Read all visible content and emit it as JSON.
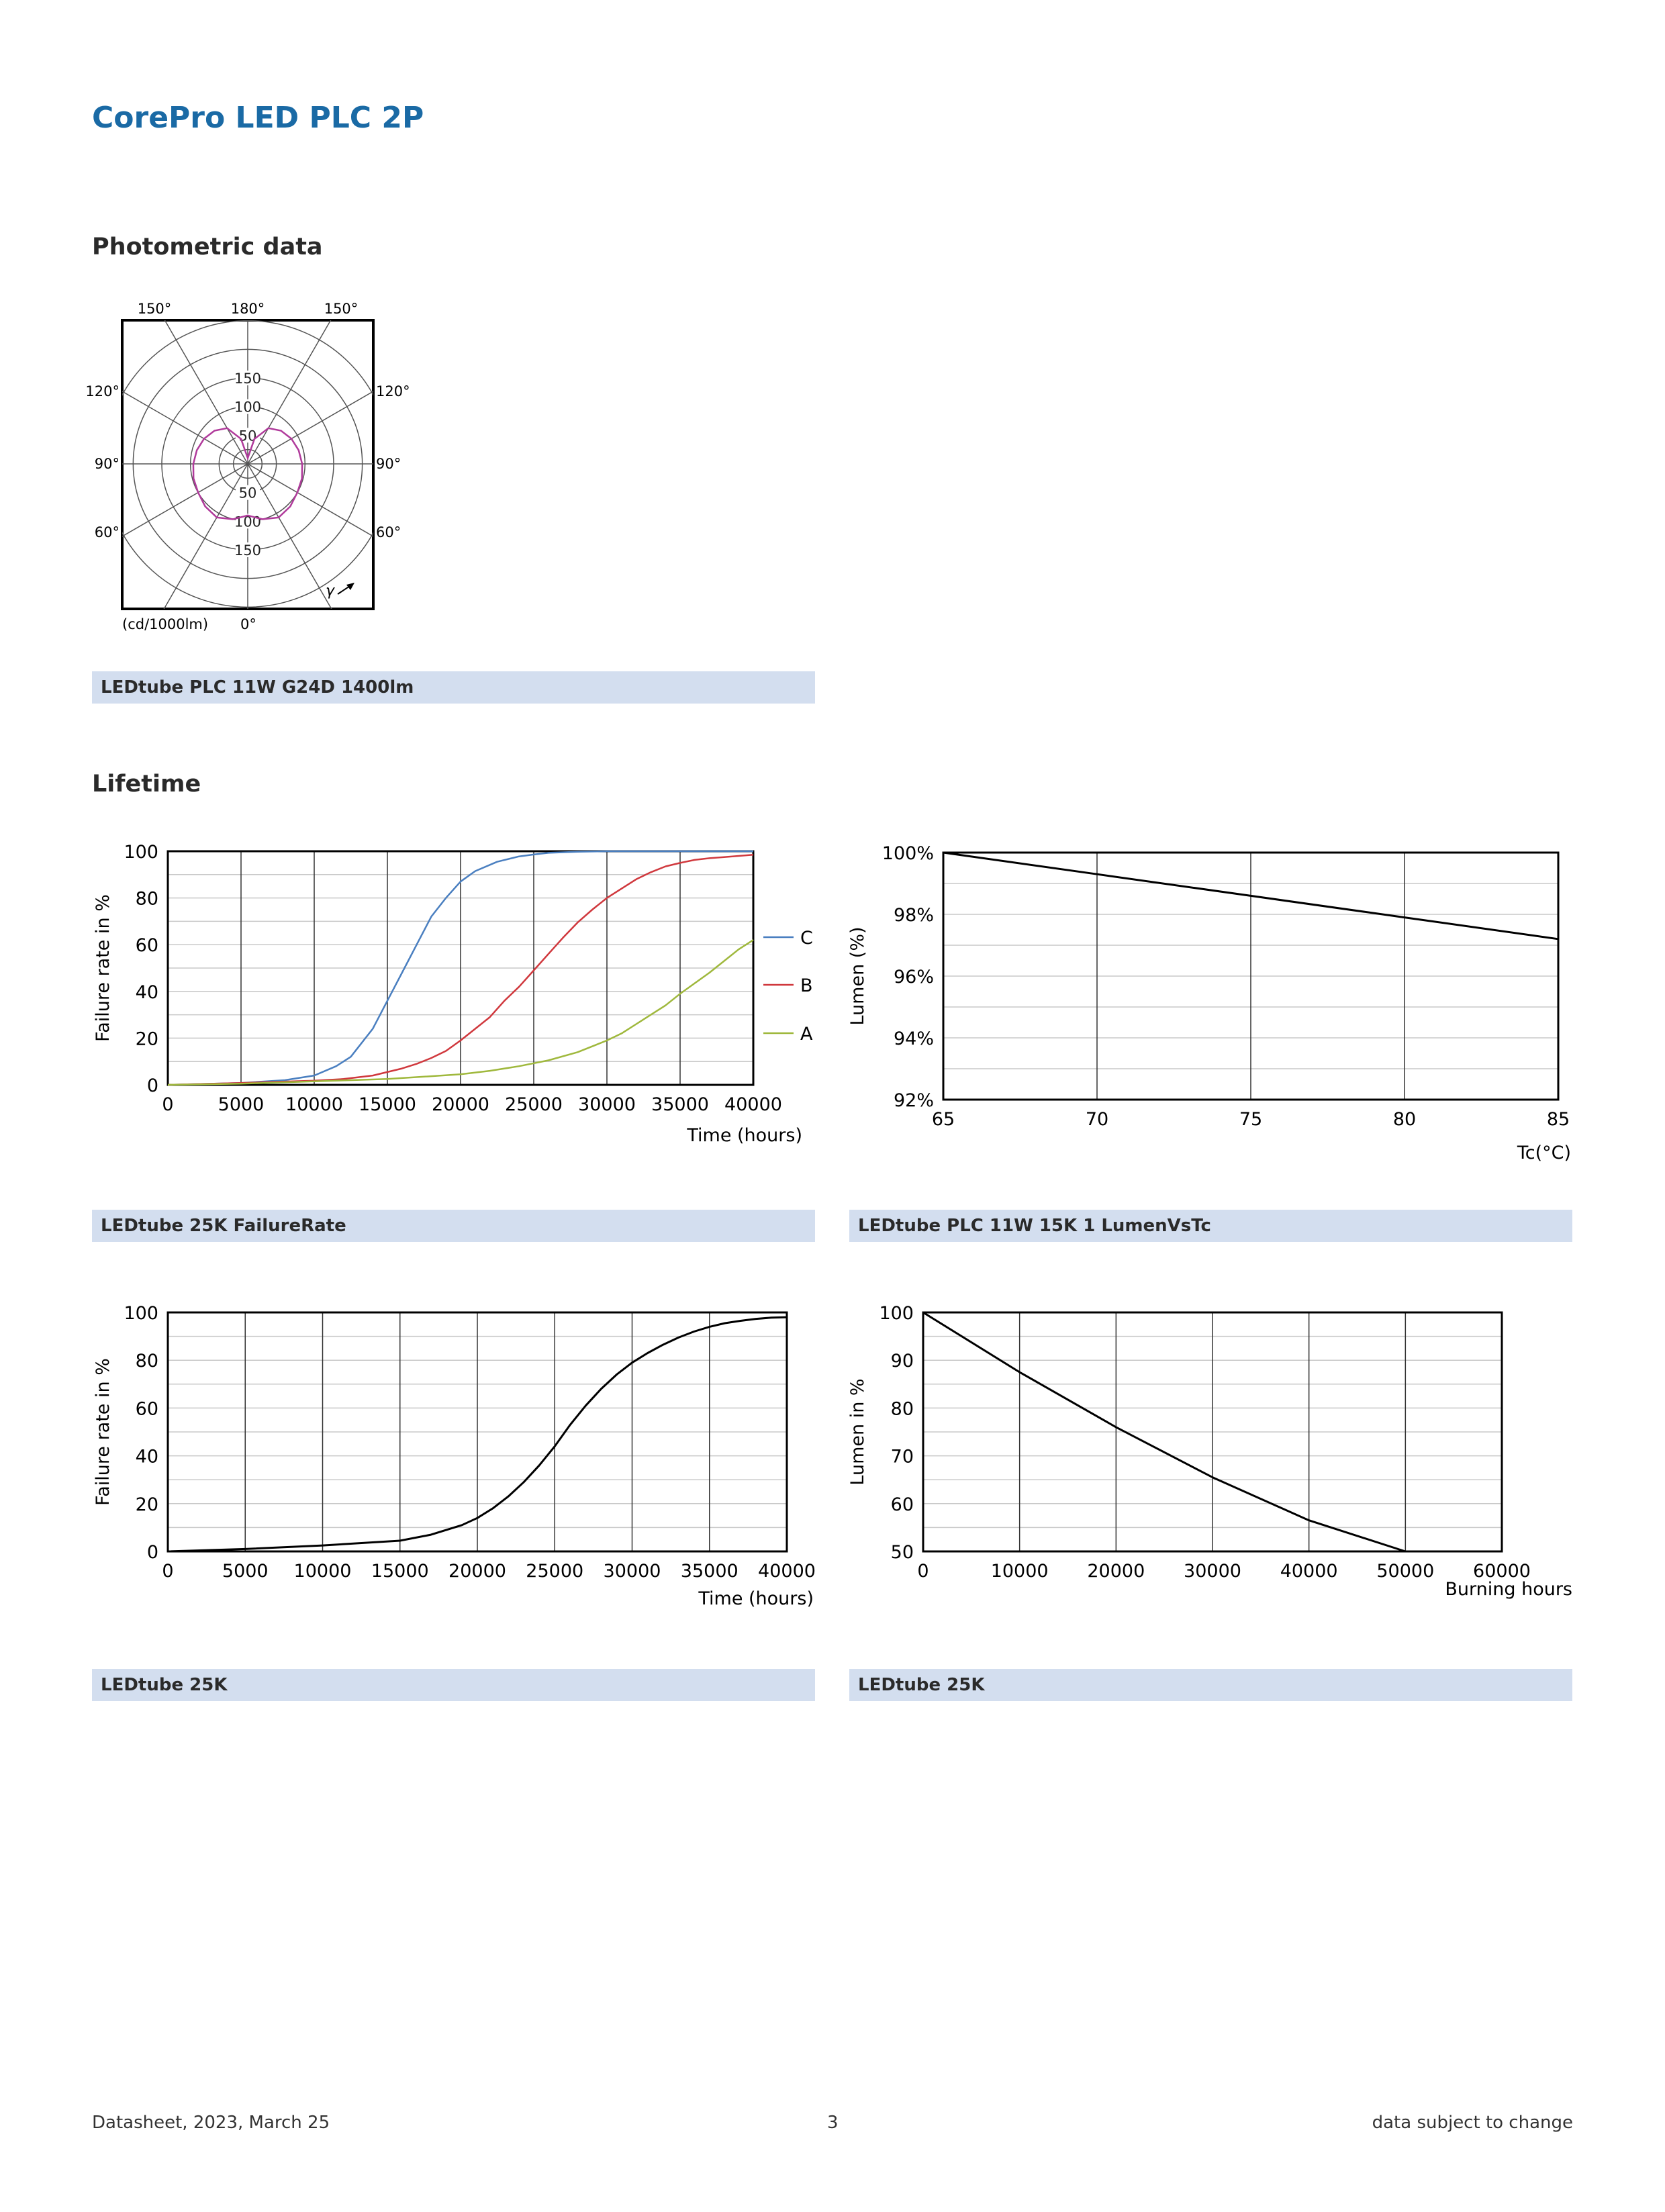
{
  "header": {
    "title": "CorePro LED PLC 2P"
  },
  "sections": {
    "photometric": "Photometric data",
    "lifetime": "Lifetime"
  },
  "captions": {
    "polar": "LEDtube PLC 11W G24D 1400lm",
    "failure_abc": "LEDtube 25K FailureRate",
    "lumen_tc": "LEDtube PLC 11W 15K 1 LumenVsTc",
    "failure_single": "LEDtube 25K",
    "lumen_hours": "LEDtube 25K"
  },
  "footer": {
    "left": "Datasheet, 2023, March 25",
    "center": "3",
    "right": "data subject to change"
  },
  "colors": {
    "title": "#1a6aa5",
    "caption_bg": "#d3deef",
    "series_C": "#4a7fc0",
    "series_B": "#d0383d",
    "series_A": "#9fb83c",
    "polar_curve": "#b03a9b"
  },
  "chart_data": [
    {
      "type": "polar",
      "angle_labels": {
        "top": [
          "150°",
          "180°",
          "150°"
        ],
        "left": [
          "120°",
          "90°",
          "60°"
        ],
        "right": [
          "120°",
          "90°",
          "60°"
        ],
        "bottom": "0°"
      },
      "radial_ticks_top": [
        "150",
        "100",
        "50"
      ],
      "radial_ticks_bottom": [
        "50",
        "100",
        "150"
      ],
      "unit_label": "(cd/1000lm)",
      "gamma_label": "γ",
      "rmax": 150,
      "series": [
        {
          "angles": [
            0,
            15,
            30,
            45,
            60,
            75,
            90,
            105,
            120,
            135,
            150,
            165,
            180
          ],
          "values": [
            90,
            100,
            108,
            105,
            100,
            98,
            95,
            92,
            88,
            82,
            72,
            45,
            10
          ]
        }
      ]
    },
    {
      "type": "line",
      "xlabel": "Time (hours)",
      "ylabel": "Failure rate in %",
      "xlim": [
        0,
        40000
      ],
      "ylim": [
        0,
        100
      ],
      "xticks": [
        "0",
        "5000",
        "10000",
        "15000",
        "20000",
        "25000",
        "30000",
        "35000",
        "40000"
      ],
      "yticks": [
        "0",
        "20",
        "40",
        "60",
        "80",
        "100"
      ],
      "legend_position": "right",
      "series": [
        {
          "name": "C",
          "x": [
            0,
            5000,
            8000,
            10000,
            11500,
            12500,
            14000,
            15000,
            16000,
            17000,
            18000,
            19000,
            20000,
            21000,
            22500,
            24000,
            25000,
            26000,
            28000,
            30000,
            40000
          ],
          "y": [
            0,
            0.8,
            2,
            4,
            8,
            12,
            24,
            36,
            48,
            60,
            72,
            80,
            87,
            91.5,
            95.5,
            97.8,
            98.6,
            99.3,
            99.8,
            100,
            100
          ]
        },
        {
          "name": "B",
          "x": [
            0,
            5000,
            10000,
            12000,
            14000,
            15000,
            16000,
            17000,
            18000,
            19000,
            20000,
            21000,
            22000,
            23000,
            24000,
            25000,
            26000,
            27000,
            28000,
            29000,
            30000,
            31000,
            32000,
            33000,
            34000,
            35000,
            36000,
            37000,
            38000,
            39000,
            40000
          ],
          "y": [
            0,
            0.8,
            1.8,
            2.5,
            4,
            5.5,
            7,
            9,
            11.5,
            14.5,
            19,
            24,
            29,
            36,
            42,
            49,
            56,
            63,
            69.5,
            75,
            80,
            84,
            88,
            91,
            93.5,
            95,
            96.3,
            97,
            97.5,
            98,
            98.5
          ]
        },
        {
          "name": "A",
          "x": [
            0,
            5000,
            10000,
            15000,
            20000,
            22000,
            24000,
            26000,
            28000,
            30000,
            31000,
            32000,
            33000,
            34000,
            35000,
            36000,
            37000,
            38000,
            39000,
            40000
          ],
          "y": [
            0,
            0.5,
            1.5,
            2.5,
            4.5,
            6,
            8,
            10.5,
            14,
            19,
            22,
            26,
            30,
            34,
            39,
            43.5,
            48,
            53,
            58,
            62
          ]
        }
      ]
    },
    {
      "type": "line",
      "xlabel": "Tc(°C)",
      "ylabel": "Lumen (%)",
      "xlim": [
        65,
        85
      ],
      "ylim": [
        92,
        100
      ],
      "xticks": [
        "65",
        "70",
        "75",
        "80",
        "85"
      ],
      "yticks": [
        "92%",
        "94%",
        "96%",
        "98%",
        "100%"
      ],
      "series": [
        {
          "x": [
            65,
            70,
            75,
            80,
            85
          ],
          "y": [
            100,
            99.3,
            98.6,
            97.9,
            97.2
          ]
        }
      ]
    },
    {
      "type": "line",
      "xlabel": "Time (hours)",
      "ylabel": "Failure rate in %",
      "xlim": [
        0,
        40000
      ],
      "ylim": [
        0,
        100
      ],
      "xticks": [
        "0",
        "5000",
        "10000",
        "15000",
        "20000",
        "25000",
        "30000",
        "35000",
        "40000"
      ],
      "yticks": [
        "0",
        "20",
        "40",
        "60",
        "80",
        "100"
      ],
      "series": [
        {
          "x": [
            0,
            5000,
            10000,
            15000,
            17000,
            19000,
            20000,
            21000,
            22000,
            23000,
            24000,
            25000,
            26000,
            27000,
            28000,
            29000,
            30000,
            31000,
            32000,
            33000,
            34000,
            35000,
            36000,
            37000,
            38000,
            39000,
            40000
          ],
          "y": [
            0,
            1,
            2.5,
            4.5,
            7,
            11,
            14,
            18,
            23,
            29,
            36,
            44,
            53,
            61,
            68,
            74,
            79,
            83,
            86.5,
            89.5,
            92,
            94,
            95.5,
            96.5,
            97.3,
            97.8,
            98
          ]
        }
      ]
    },
    {
      "type": "line",
      "xlabel": "Burning hours",
      "ylabel": "Lumen in %",
      "xlim": [
        0,
        60000
      ],
      "ylim": [
        50,
        100
      ],
      "xticks": [
        "0",
        "10000",
        "20000",
        "30000",
        "40000",
        "50000",
        "60000"
      ],
      "yticks": [
        "50",
        "60",
        "70",
        "80",
        "90",
        "100"
      ],
      "series": [
        {
          "x": [
            0,
            10000,
            20000,
            30000,
            40000,
            50000
          ],
          "y": [
            100,
            87.5,
            76,
            65.5,
            56.5,
            50
          ]
        }
      ]
    }
  ]
}
